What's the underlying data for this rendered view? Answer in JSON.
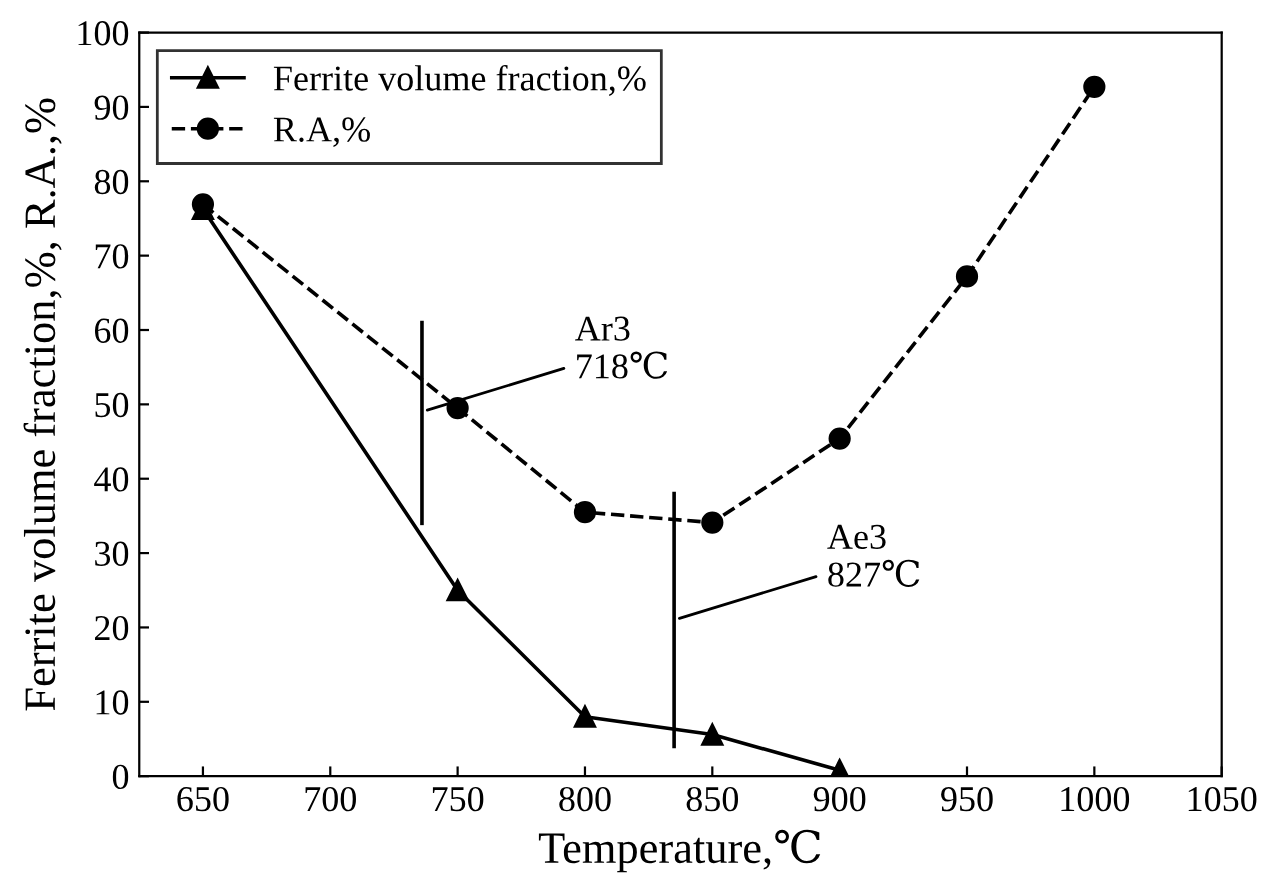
{
  "chart_data": {
    "type": "line",
    "xlabel": "Temperature,℃",
    "ylabel": "Ferrite volume fraction,%, R.A.,%",
    "xlim": [
      625,
      1050
    ],
    "xticks": [
      650,
      700,
      750,
      800,
      850,
      900,
      950,
      1000,
      1050
    ],
    "ylim": [
      0,
      100
    ],
    "yticks": [
      0,
      10,
      20,
      30,
      40,
      50,
      60,
      70,
      80,
      90,
      100
    ],
    "grid": false,
    "legend": "top left",
    "series": [
      {
        "name": "Ferrite volume fraction,%",
        "color": "#000000",
        "marker": "triangle",
        "line_style": "solid",
        "x": [
          650,
          750,
          800,
          850,
          900
        ],
        "values": [
          76.3,
          25,
          8,
          5.6,
          0.8
        ]
      },
      {
        "name": "R.A,%",
        "color": "#000000",
        "marker": "circle",
        "line_style": "dashed",
        "x": [
          650,
          750,
          800,
          850,
          900,
          950,
          1000
        ],
        "values": [
          76.9,
          49.5,
          35.5,
          34.1,
          45.4,
          67.2,
          92.7
        ]
      },
      {
        "color": "#000000",
        "marker": "none",
        "line_style": "solid",
        "x": [
          736,
          736
        ],
        "values": [
          34,
          61
        ]
      },
      {
        "color": "#000000",
        "marker": "none",
        "line_style": "solid",
        "x": [
          835,
          835
        ],
        "values": [
          4,
          38
        ]
      }
    ],
    "annotations": [
      {
        "text": "Ar3\n718℃",
        "x": 736,
        "y": 49
      },
      {
        "text": "Ae3\n827℃",
        "x": 835,
        "y": 21
      }
    ]
  }
}
